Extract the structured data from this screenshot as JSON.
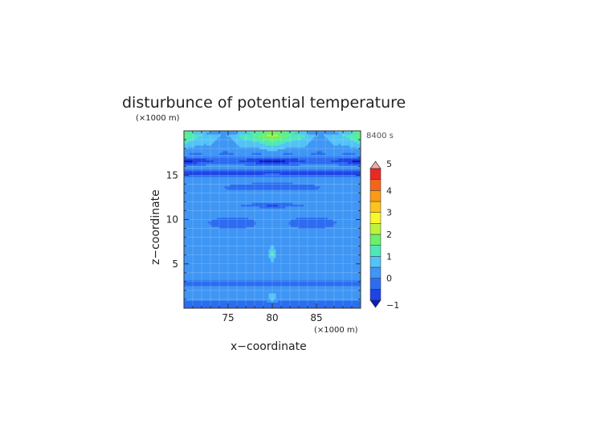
{
  "chart_data": {
    "type": "heatmap",
    "title": "disturbunce of potential temperature",
    "time_label": "8400 s",
    "xlabel": "x−coordinate",
    "ylabel": "z−coordinate",
    "x_unit": "(×1000 m)",
    "y_unit": "(×1000 m)",
    "xlim": [
      70,
      90
    ],
    "ylim": [
      0,
      20
    ],
    "x_ticks": [
      {
        "value": 75,
        "label": "75"
      },
      {
        "value": 80,
        "label": "80"
      },
      {
        "value": 85,
        "label": "85"
      }
    ],
    "y_ticks": [
      {
        "value": 5,
        "label": "5"
      },
      {
        "value": 10,
        "label": "10"
      },
      {
        "value": 15,
        "label": "15"
      }
    ],
    "grid": true,
    "colorbar": {
      "position": "right",
      "extend": "both",
      "levels": [
        -1,
        -0.5,
        0,
        0.5,
        1,
        1.5,
        2,
        2.5,
        3,
        3.5,
        4,
        4.5,
        5
      ],
      "colors": [
        "#1e44e6",
        "#2c6cf0",
        "#3f96f5",
        "#52c3f6",
        "#4fe8b9",
        "#6cf06c",
        "#bff23a",
        "#f8f82a",
        "#fcc51e",
        "#fb9a18",
        "#f5641b",
        "#e82a25"
      ],
      "under_color": "#0a1cbe",
      "over_color": "#f7a6a6",
      "tick_labels": [
        {
          "value": 5,
          "label": "5"
        },
        {
          "value": 4,
          "label": "4"
        },
        {
          "value": 3,
          "label": "3"
        },
        {
          "value": 2,
          "label": "2"
        },
        {
          "value": 1,
          "label": "1"
        },
        {
          "value": 0,
          "label": "0"
        },
        {
          "value": -1,
          "label": "−1"
        }
      ]
    },
    "field_description": "background ~0.2 K; warm layer 18-20 km (~1.5-2.5 K); cold bands near 15-17 km and 12 km; thin warm plume at x=80 km"
  }
}
